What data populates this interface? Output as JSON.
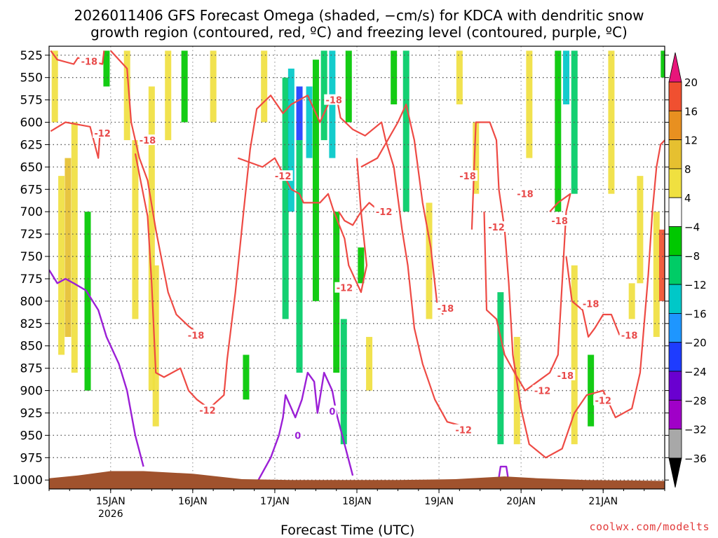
{
  "chart_data": {
    "type": "heatmap",
    "title_line1": "2026011406 GFS Forecast Omega (shaded, −cm/s) for KDCA with dendritic snow",
    "title_line2": "growth region (contoured, red, ºC) and freezing level (contoured, purple, ºC)",
    "xlabel": "Forecast Time (UTC)",
    "ylabel": "",
    "credit": "coolwx.com/modelts",
    "x_ticks": [
      {
        "label": "15JAN",
        "sub": "2026"
      },
      {
        "label": "16JAN",
        "sub": ""
      },
      {
        "label": "17JAN",
        "sub": ""
      },
      {
        "label": "18JAN",
        "sub": ""
      },
      {
        "label": "19JAN",
        "sub": ""
      },
      {
        "label": "20JAN",
        "sub": ""
      },
      {
        "label": "21JAN",
        "sub": ""
      }
    ],
    "x_range_days": [
      14.25,
      21.75
    ],
    "y_ticks": [
      525,
      550,
      575,
      600,
      625,
      650,
      675,
      700,
      725,
      750,
      775,
      800,
      825,
      850,
      875,
      900,
      925,
      950,
      975,
      1000
    ],
    "y_range": [
      515,
      1010
    ],
    "grid": "dotted",
    "colorbar": {
      "labels": [
        "20",
        "16",
        "12",
        "8",
        "4",
        "−4",
        "−8",
        "−12",
        "−16",
        "−20",
        "−24",
        "−28",
        "−32",
        "−36"
      ],
      "colors": [
        "#d8d8d8",
        "#8f8f8f",
        "#a000c8",
        "#6a00d0",
        "#1e3cff",
        "#1e96ff",
        "#00c8c8",
        "#00cc66",
        "#00c800",
        "#ffffff",
        "#f0e040",
        "#e6c030",
        "#e89020",
        "#f05030",
        "#e8157a"
      ],
      "end_low_color": "#000000",
      "end_high_color": "#e8157a"
    },
    "shading": [
      {
        "day": 14.32,
        "p1": 520,
        "p2": 600,
        "value": 5
      },
      {
        "day": 14.4,
        "p1": 660,
        "p2": 860,
        "value": 6
      },
      {
        "day": 14.48,
        "p1": 640,
        "p2": 840,
        "value": 9
      },
      {
        "day": 14.56,
        "p1": 600,
        "p2": 880,
        "value": 5
      },
      {
        "day": 14.72,
        "p1": 700,
        "p2": 900,
        "value": -6
      },
      {
        "day": 14.95,
        "p1": 520,
        "p2": 560,
        "value": -6
      },
      {
        "day": 15.2,
        "p1": 520,
        "p2": 620,
        "value": 5
      },
      {
        "day": 15.3,
        "p1": 620,
        "p2": 820,
        "value": 5
      },
      {
        "day": 15.5,
        "p1": 560,
        "p2": 900,
        "value": 6
      },
      {
        "day": 15.55,
        "p1": 760,
        "p2": 940,
        "value": 5
      },
      {
        "day": 15.7,
        "p1": 520,
        "p2": 620,
        "value": 5
      },
      {
        "day": 15.9,
        "p1": 520,
        "p2": 600,
        "value": -6
      },
      {
        "day": 16.25,
        "p1": 520,
        "p2": 600,
        "value": 5
      },
      {
        "day": 16.65,
        "p1": 860,
        "p2": 910,
        "value": -6
      },
      {
        "day": 16.87,
        "p1": 520,
        "p2": 600,
        "value": 5
      },
      {
        "day": 17.13,
        "p1": 550,
        "p2": 820,
        "value": -8
      },
      {
        "day": 17.2,
        "p1": 540,
        "p2": 700,
        "value": -12
      },
      {
        "day": 17.3,
        "p1": 560,
        "p2": 620,
        "value": -22
      },
      {
        "day": 17.3,
        "p1": 620,
        "p2": 880,
        "value": -8
      },
      {
        "day": 17.42,
        "p1": 560,
        "p2": 640,
        "value": -14
      },
      {
        "day": 17.5,
        "p1": 530,
        "p2": 800,
        "value": -6
      },
      {
        "day": 17.6,
        "p1": 520,
        "p2": 620,
        "value": -10
      },
      {
        "day": 17.7,
        "p1": 520,
        "p2": 640,
        "value": -14
      },
      {
        "day": 17.75,
        "p1": 700,
        "p2": 880,
        "value": -6
      },
      {
        "day": 17.84,
        "p1": 820,
        "p2": 960,
        "value": -10
      },
      {
        "day": 17.9,
        "p1": 520,
        "p2": 600,
        "value": -6
      },
      {
        "day": 18.05,
        "p1": 740,
        "p2": 780,
        "value": -6
      },
      {
        "day": 18.15,
        "p1": 840,
        "p2": 900,
        "value": 5
      },
      {
        "day": 18.45,
        "p1": 520,
        "p2": 580,
        "value": -6
      },
      {
        "day": 18.6,
        "p1": 520,
        "p2": 700,
        "value": -8
      },
      {
        "day": 18.88,
        "p1": 690,
        "p2": 820,
        "value": 6
      },
      {
        "day": 19.25,
        "p1": 520,
        "p2": 580,
        "value": 5
      },
      {
        "day": 19.45,
        "p1": 600,
        "p2": 680,
        "value": 5
      },
      {
        "day": 19.75,
        "p1": 790,
        "p2": 960,
        "value": -10
      },
      {
        "day": 19.95,
        "p1": 840,
        "p2": 960,
        "value": 5
      },
      {
        "day": 20.1,
        "p1": 520,
        "p2": 640,
        "value": 5
      },
      {
        "day": 20.45,
        "p1": 520,
        "p2": 700,
        "value": -6
      },
      {
        "day": 20.55,
        "p1": 520,
        "p2": 580,
        "value": -14
      },
      {
        "day": 20.65,
        "p1": 520,
        "p2": 680,
        "value": -8
      },
      {
        "day": 20.65,
        "p1": 760,
        "p2": 960,
        "value": 5
      },
      {
        "day": 20.85,
        "p1": 860,
        "p2": 940,
        "value": -6
      },
      {
        "day": 21.1,
        "p1": 520,
        "p2": 680,
        "value": 5
      },
      {
        "day": 21.35,
        "p1": 780,
        "p2": 820,
        "value": 5
      },
      {
        "day": 21.45,
        "p1": 660,
        "p2": 780,
        "value": 5
      },
      {
        "day": 21.65,
        "p1": 700,
        "p2": 840,
        "value": 5
      },
      {
        "day": 21.72,
        "p1": 720,
        "p2": 800,
        "value": 17
      },
      {
        "day": 21.74,
        "p1": 520,
        "p2": 550,
        "value": -6
      }
    ],
    "contour_labels": [
      {
        "text": "-18",
        "day": 14.74,
        "p": 532,
        "color": "#e84a4a"
      },
      {
        "text": "-12",
        "day": 14.9,
        "p": 612,
        "color": "#e84a4a"
      },
      {
        "text": "-18",
        "day": 15.45,
        "p": 620,
        "color": "#e84a4a"
      },
      {
        "text": "-18",
        "day": 16.04,
        "p": 838,
        "color": "#e84a4a"
      },
      {
        "text": "-12",
        "day": 16.18,
        "p": 922,
        "color": "#e84a4a"
      },
      {
        "text": "-12",
        "day": 17.1,
        "p": 660,
        "color": "#e84a4a"
      },
      {
        "text": "-18",
        "day": 17.72,
        "p": 575,
        "color": "#e84a4a"
      },
      {
        "text": "-12",
        "day": 18.33,
        "p": 700,
        "color": "#e84a4a"
      },
      {
        "text": "-12",
        "day": 17.85,
        "p": 785,
        "color": "#e84a4a"
      },
      {
        "text": "-18",
        "day": 19.35,
        "p": 660,
        "color": "#e84a4a"
      },
      {
        "text": "-18",
        "day": 19.08,
        "p": 808,
        "color": "#e84a4a"
      },
      {
        "text": "-12",
        "day": 19.7,
        "p": 717,
        "color": "#e84a4a"
      },
      {
        "text": "-18",
        "day": 20.05,
        "p": 680,
        "color": "#e84a4a"
      },
      {
        "text": "-18",
        "day": 20.47,
        "p": 710,
        "color": "#e84a4a"
      },
      {
        "text": "-18",
        "day": 20.85,
        "p": 803,
        "color": "#e84a4a"
      },
      {
        "text": "-12",
        "day": 20.26,
        "p": 900,
        "color": "#e84a4a"
      },
      {
        "text": "-18",
        "day": 20.54,
        "p": 883,
        "color": "#e84a4a"
      },
      {
        "text": "-12",
        "day": 19.3,
        "p": 944,
        "color": "#e84a4a"
      },
      {
        "text": "-12",
        "day": 21.0,
        "p": 911,
        "color": "#e84a4a"
      },
      {
        "text": "-18",
        "day": 21.32,
        "p": 838,
        "color": "#e84a4a"
      },
      {
        "text": "0",
        "day": 17.28,
        "p": 950,
        "color": "#9b1fd6"
      },
      {
        "text": "0",
        "day": 17.7,
        "p": 923,
        "color": "#9b1fd6"
      }
    ],
    "contours_dgz": [
      [
        [
          14.27,
          520
        ],
        [
          14.35,
          530
        ],
        [
          14.55,
          535
        ],
        [
          14.6,
          528
        ],
        [
          14.9,
          535
        ],
        [
          14.92,
          520
        ]
      ],
      [
        [
          14.27,
          610
        ],
        [
          14.45,
          600
        ],
        [
          14.75,
          605
        ],
        [
          14.85,
          640
        ],
        [
          14.87,
          612
        ]
      ],
      [
        [
          15.0,
          520
        ],
        [
          15.2,
          540
        ],
        [
          15.25,
          600
        ],
        [
          15.35,
          640
        ],
        [
          15.45,
          665
        ],
        [
          15.55,
          720
        ],
        [
          15.7,
          790
        ],
        [
          15.8,
          815
        ],
        [
          15.95,
          828
        ],
        [
          16.05,
          835
        ]
      ],
      [
        [
          15.3,
          635
        ],
        [
          15.45,
          705
        ],
        [
          15.5,
          780
        ],
        [
          15.55,
          880
        ],
        [
          15.65,
          885
        ],
        [
          15.85,
          875
        ],
        [
          15.95,
          900
        ],
        [
          16.05,
          910
        ],
        [
          16.2,
          920
        ],
        [
          16.38,
          905
        ],
        [
          16.42,
          865
        ],
        [
          16.52,
          790
        ],
        [
          16.62,
          700
        ],
        [
          16.7,
          630
        ],
        [
          16.78,
          585
        ],
        [
          16.95,
          570
        ],
        [
          17.1,
          590
        ],
        [
          17.2,
          580
        ],
        [
          17.4,
          570
        ],
        [
          17.55,
          600
        ],
        [
          17.65,
          580
        ],
        [
          17.75,
          570
        ],
        [
          17.8,
          595
        ],
        [
          17.95,
          608
        ],
        [
          18.1,
          615
        ],
        [
          18.3,
          600
        ],
        [
          18.35,
          620
        ],
        [
          18.45,
          650
        ],
        [
          18.55,
          720
        ],
        [
          18.62,
          760
        ],
        [
          18.7,
          830
        ],
        [
          18.8,
          870
        ],
        [
          18.95,
          910
        ],
        [
          19.1,
          935
        ],
        [
          19.3,
          940
        ]
      ],
      [
        [
          16.55,
          640
        ],
        [
          16.85,
          650
        ],
        [
          17.0,
          640
        ],
        [
          17.2,
          675
        ],
        [
          17.3,
          680
        ],
        [
          17.35,
          690
        ],
        [
          17.55,
          690
        ],
        [
          17.65,
          680
        ],
        [
          17.72,
          700
        ],
        [
          17.85,
          730
        ],
        [
          17.9,
          760
        ],
        [
          18.05,
          790
        ],
        [
          18.12,
          760
        ],
        [
          18.05,
          700
        ],
        [
          18.0,
          640
        ]
      ],
      [
        [
          17.78,
          700
        ],
        [
          17.85,
          710
        ],
        [
          17.95,
          715
        ],
        [
          18.05,
          700
        ],
        [
          18.15,
          690
        ],
        [
          18.28,
          700
        ]
      ],
      [
        [
          18.05,
          650
        ],
        [
          18.25,
          640
        ],
        [
          18.5,
          600
        ],
        [
          18.6,
          580
        ],
        [
          18.7,
          620
        ],
        [
          18.8,
          690
        ],
        [
          18.9,
          740
        ],
        [
          18.98,
          805
        ],
        [
          19.05,
          815
        ]
      ],
      [
        [
          19.4,
          720
        ],
        [
          19.45,
          600
        ],
        [
          19.62,
          600
        ],
        [
          19.7,
          620
        ],
        [
          19.73,
          675
        ],
        [
          19.8,
          720
        ],
        [
          19.85,
          780
        ],
        [
          19.9,
          860
        ],
        [
          20.0,
          920
        ],
        [
          20.1,
          960
        ],
        [
          20.3,
          975
        ],
        [
          20.5,
          965
        ],
        [
          20.65,
          925
        ],
        [
          20.8,
          905
        ],
        [
          21.0,
          900
        ],
        [
          21.15,
          930
        ],
        [
          21.35,
          920
        ],
        [
          21.45,
          880
        ],
        [
          21.55,
          770
        ],
        [
          21.6,
          700
        ],
        [
          21.65,
          650
        ],
        [
          21.7,
          625
        ],
        [
          21.75,
          620
        ]
      ],
      [
        [
          19.55,
          700
        ],
        [
          19.58,
          810
        ],
        [
          19.7,
          820
        ],
        [
          19.8,
          860
        ],
        [
          19.92,
          880
        ],
        [
          20.05,
          900
        ],
        [
          20.2,
          890
        ],
        [
          20.35,
          880
        ],
        [
          20.45,
          860
        ],
        [
          20.5,
          780
        ],
        [
          20.55,
          700
        ],
        [
          20.6,
          680
        ],
        [
          20.45,
          690
        ],
        [
          20.35,
          700
        ]
      ],
      [
        [
          20.55,
          750
        ],
        [
          20.62,
          800
        ],
        [
          20.75,
          810
        ],
        [
          20.82,
          840
        ],
        [
          20.9,
          830
        ],
        [
          21.0,
          815
        ],
        [
          21.1,
          815
        ],
        [
          21.2,
          838
        ]
      ]
    ],
    "contours_freezing": [
      [
        [
          14.25,
          765
        ],
        [
          14.35,
          780
        ],
        [
          14.45,
          775
        ],
        [
          14.55,
          780
        ],
        [
          14.7,
          788
        ],
        [
          14.85,
          810
        ],
        [
          14.95,
          840
        ],
        [
          15.1,
          870
        ],
        [
          15.2,
          900
        ],
        [
          15.3,
          950
        ],
        [
          15.4,
          985
        ]
      ],
      [
        [
          16.8,
          1000
        ],
        [
          16.95,
          975
        ],
        [
          17.05,
          950
        ],
        [
          17.1,
          930
        ],
        [
          17.13,
          905
        ],
        [
          17.25,
          930
        ],
        [
          17.33,
          910
        ],
        [
          17.4,
          880
        ],
        [
          17.48,
          890
        ],
        [
          17.52,
          925
        ],
        [
          17.6,
          880
        ],
        [
          17.7,
          900
        ],
        [
          17.75,
          925
        ],
        [
          17.85,
          960
        ],
        [
          17.95,
          995
        ]
      ],
      [
        [
          19.72,
          1003
        ],
        [
          19.75,
          985
        ],
        [
          19.82,
          985
        ],
        [
          19.85,
          1003
        ]
      ]
    ],
    "terrain": [
      [
        14.25,
        998
      ],
      [
        14.6,
        995
      ],
      [
        15.0,
        990
      ],
      [
        15.4,
        990
      ],
      [
        16.0,
        993
      ],
      [
        16.6,
        999
      ],
      [
        17.2,
        1000
      ],
      [
        17.8,
        1000
      ],
      [
        18.5,
        1000
      ],
      [
        19.2,
        999
      ],
      [
        19.8,
        996
      ],
      [
        20.2,
        998
      ],
      [
        20.8,
        1000
      ],
      [
        21.75,
        1001
      ]
    ]
  }
}
